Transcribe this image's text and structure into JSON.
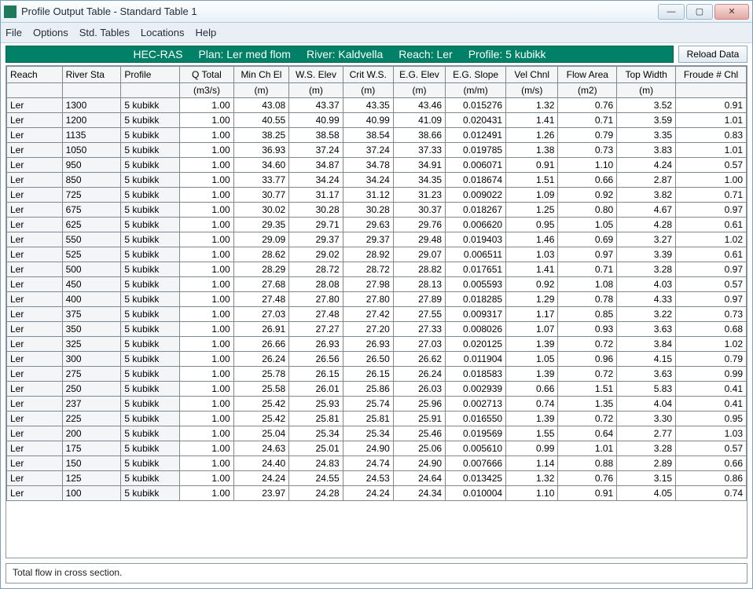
{
  "window": {
    "title": "Profile Output Table - Standard Table 1"
  },
  "menus": [
    "File",
    "Options",
    "Std. Tables",
    "Locations",
    "Help"
  ],
  "info": {
    "program": "HEC-RAS",
    "plan_label": "Plan: Ler med flom",
    "river_label": "River: Kaldvella",
    "reach_label": "Reach: Ler",
    "profile_label": "Profile: 5 kubikk"
  },
  "reload_label": "Reload Data",
  "status_text": "Total flow in cross section.",
  "columns": [
    {
      "name": "Reach",
      "unit": ""
    },
    {
      "name": "River Sta",
      "unit": ""
    },
    {
      "name": "Profile",
      "unit": ""
    },
    {
      "name": "Q Total",
      "unit": "(m3/s)"
    },
    {
      "name": "Min Ch El",
      "unit": "(m)"
    },
    {
      "name": "W.S. Elev",
      "unit": "(m)"
    },
    {
      "name": "Crit W.S.",
      "unit": "(m)"
    },
    {
      "name": "E.G. Elev",
      "unit": "(m)"
    },
    {
      "name": "E.G. Slope",
      "unit": "(m/m)"
    },
    {
      "name": "Vel Chnl",
      "unit": "(m/s)"
    },
    {
      "name": "Flow Area",
      "unit": "(m2)"
    },
    {
      "name": "Top Width",
      "unit": "(m)"
    },
    {
      "name": "Froude # Chl",
      "unit": ""
    }
  ],
  "rows": [
    [
      "Ler",
      "1300",
      "5 kubikk",
      "1.00",
      "43.08",
      "43.37",
      "43.35",
      "43.46",
      "0.015276",
      "1.32",
      "0.76",
      "3.52",
      "0.91"
    ],
    [
      "Ler",
      "1200",
      "5 kubikk",
      "1.00",
      "40.55",
      "40.99",
      "40.99",
      "41.09",
      "0.020431",
      "1.41",
      "0.71",
      "3.59",
      "1.01"
    ],
    [
      "Ler",
      "1135",
      "5 kubikk",
      "1.00",
      "38.25",
      "38.58",
      "38.54",
      "38.66",
      "0.012491",
      "1.26",
      "0.79",
      "3.35",
      "0.83"
    ],
    [
      "Ler",
      "1050",
      "5 kubikk",
      "1.00",
      "36.93",
      "37.24",
      "37.24",
      "37.33",
      "0.019785",
      "1.38",
      "0.73",
      "3.83",
      "1.01"
    ],
    [
      "Ler",
      "950",
      "5 kubikk",
      "1.00",
      "34.60",
      "34.87",
      "34.78",
      "34.91",
      "0.006071",
      "0.91",
      "1.10",
      "4.24",
      "0.57"
    ],
    [
      "Ler",
      "850",
      "5 kubikk",
      "1.00",
      "33.77",
      "34.24",
      "34.24",
      "34.35",
      "0.018674",
      "1.51",
      "0.66",
      "2.87",
      "1.00"
    ],
    [
      "Ler",
      "725",
      "5 kubikk",
      "1.00",
      "30.77",
      "31.17",
      "31.12",
      "31.23",
      "0.009022",
      "1.09",
      "0.92",
      "3.82",
      "0.71"
    ],
    [
      "Ler",
      "675",
      "5 kubikk",
      "1.00",
      "30.02",
      "30.28",
      "30.28",
      "30.37",
      "0.018267",
      "1.25",
      "0.80",
      "4.67",
      "0.97"
    ],
    [
      "Ler",
      "625",
      "5 kubikk",
      "1.00",
      "29.35",
      "29.71",
      "29.63",
      "29.76",
      "0.006620",
      "0.95",
      "1.05",
      "4.28",
      "0.61"
    ],
    [
      "Ler",
      "550",
      "5 kubikk",
      "1.00",
      "29.09",
      "29.37",
      "29.37",
      "29.48",
      "0.019403",
      "1.46",
      "0.69",
      "3.27",
      "1.02"
    ],
    [
      "Ler",
      "525",
      "5 kubikk",
      "1.00",
      "28.62",
      "29.02",
      "28.92",
      "29.07",
      "0.006511",
      "1.03",
      "0.97",
      "3.39",
      "0.61"
    ],
    [
      "Ler",
      "500",
      "5 kubikk",
      "1.00",
      "28.29",
      "28.72",
      "28.72",
      "28.82",
      "0.017651",
      "1.41",
      "0.71",
      "3.28",
      "0.97"
    ],
    [
      "Ler",
      "450",
      "5 kubikk",
      "1.00",
      "27.68",
      "28.08",
      "27.98",
      "28.13",
      "0.005593",
      "0.92",
      "1.08",
      "4.03",
      "0.57"
    ],
    [
      "Ler",
      "400",
      "5 kubikk",
      "1.00",
      "27.48",
      "27.80",
      "27.80",
      "27.89",
      "0.018285",
      "1.29",
      "0.78",
      "4.33",
      "0.97"
    ],
    [
      "Ler",
      "375",
      "5 kubikk",
      "1.00",
      "27.03",
      "27.48",
      "27.42",
      "27.55",
      "0.009317",
      "1.17",
      "0.85",
      "3.22",
      "0.73"
    ],
    [
      "Ler",
      "350",
      "5 kubikk",
      "1.00",
      "26.91",
      "27.27",
      "27.20",
      "27.33",
      "0.008026",
      "1.07",
      "0.93",
      "3.63",
      "0.68"
    ],
    [
      "Ler",
      "325",
      "5 kubikk",
      "1.00",
      "26.66",
      "26.93",
      "26.93",
      "27.03",
      "0.020125",
      "1.39",
      "0.72",
      "3.84",
      "1.02"
    ],
    [
      "Ler",
      "300",
      "5 kubikk",
      "1.00",
      "26.24",
      "26.56",
      "26.50",
      "26.62",
      "0.011904",
      "1.05",
      "0.96",
      "4.15",
      "0.79"
    ],
    [
      "Ler",
      "275",
      "5 kubikk",
      "1.00",
      "25.78",
      "26.15",
      "26.15",
      "26.24",
      "0.018583",
      "1.39",
      "0.72",
      "3.63",
      "0.99"
    ],
    [
      "Ler",
      "250",
      "5 kubikk",
      "1.00",
      "25.58",
      "26.01",
      "25.86",
      "26.03",
      "0.002939",
      "0.66",
      "1.51",
      "5.83",
      "0.41"
    ],
    [
      "Ler",
      "237",
      "5 kubikk",
      "1.00",
      "25.42",
      "25.93",
      "25.74",
      "25.96",
      "0.002713",
      "0.74",
      "1.35",
      "4.04",
      "0.41"
    ],
    [
      "Ler",
      "225",
      "5 kubikk",
      "1.00",
      "25.42",
      "25.81",
      "25.81",
      "25.91",
      "0.016550",
      "1.39",
      "0.72",
      "3.30",
      "0.95"
    ],
    [
      "Ler",
      "200",
      "5 kubikk",
      "1.00",
      "25.04",
      "25.34",
      "25.34",
      "25.46",
      "0.019569",
      "1.55",
      "0.64",
      "2.77",
      "1.03"
    ],
    [
      "Ler",
      "175",
      "5 kubikk",
      "1.00",
      "24.63",
      "25.01",
      "24.90",
      "25.06",
      "0.005610",
      "0.99",
      "1.01",
      "3.28",
      "0.57"
    ],
    [
      "Ler",
      "150",
      "5 kubikk",
      "1.00",
      "24.40",
      "24.83",
      "24.74",
      "24.90",
      "0.007666",
      "1.14",
      "0.88",
      "2.89",
      "0.66"
    ],
    [
      "Ler",
      "125",
      "5 kubikk",
      "1.00",
      "24.24",
      "24.55",
      "24.53",
      "24.64",
      "0.013425",
      "1.32",
      "0.76",
      "3.15",
      "0.86"
    ],
    [
      "Ler",
      "100",
      "5 kubikk",
      "1.00",
      "23.97",
      "24.28",
      "24.24",
      "24.34",
      "0.010004",
      "1.10",
      "0.91",
      "4.05",
      "0.74"
    ]
  ]
}
